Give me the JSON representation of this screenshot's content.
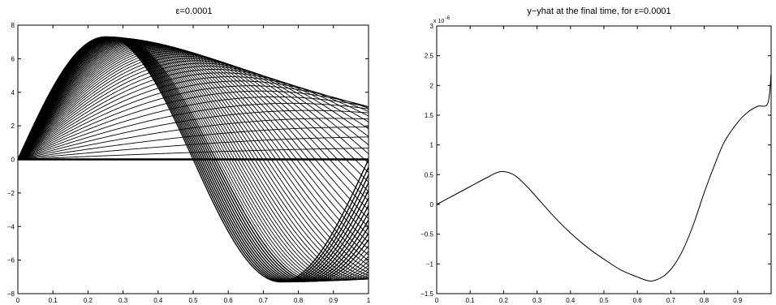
{
  "chart_data": [
    {
      "type": "line",
      "title": "ε=0.0001",
      "xlabel": "",
      "ylabel": "",
      "xlim": [
        0,
        1
      ],
      "ylim": [
        -8,
        8
      ],
      "xticks": [
        0,
        0.1,
        0.2,
        0.3,
        0.4,
        0.5,
        0.6,
        0.7,
        0.8,
        0.9,
        1
      ],
      "xtick_labels": [
        "0",
        "0.1",
        "0.2",
        "0.3",
        "0.4",
        "0.5",
        "0.6",
        "0.7",
        "0.8",
        "0.9",
        "1"
      ],
      "yticks": [
        -8,
        -6,
        -4,
        -2,
        0,
        2,
        4,
        6,
        8
      ],
      "ytick_labels": [
        "−8",
        "−6",
        "−4",
        "−2",
        "0",
        "2",
        "4",
        "6",
        "8"
      ],
      "grid": false,
      "legend": "none",
      "line_color": "#000000",
      "series_description": "family of curves y(x,t) = A(t) sin(2πx·s(t)), converging to amplitude ~7.3",
      "final_peak": [
        0.25,
        7.3
      ],
      "final_trough": [
        0.75,
        -7.3
      ],
      "curve_count": 60
    },
    {
      "type": "line",
      "title": "y−yhat at the final time, for ε=0.0001",
      "xlabel": "",
      "ylabel": "",
      "exponent_label": "x 10",
      "exponent_power": "−6",
      "xlim": [
        0,
        1
      ],
      "ylim": [
        -1.5,
        3
      ],
      "xticks": [
        0,
        0.1,
        0.2,
        0.3,
        0.4,
        0.5,
        0.6,
        0.7,
        0.8,
        0.9
      ],
      "xtick_labels": [
        "0",
        "0.1",
        "0.2",
        "0.3",
        "0.4",
        "0.5",
        "0.6",
        "0.7",
        "0.8",
        "0.9"
      ],
      "yticks": [
        -1.5,
        -1,
        -0.5,
        0,
        0.5,
        1,
        1.5,
        2,
        2.5,
        3
      ],
      "ytick_labels": [
        "−1.5",
        "−1",
        "−0.5",
        "0",
        "0.5",
        "1",
        "1.5",
        "2",
        "2.5",
        "3"
      ],
      "grid": false,
      "legend": "none",
      "line_color": "#000000",
      "x": [
        0,
        0.05,
        0.1,
        0.15,
        0.19,
        0.23,
        0.27,
        0.31,
        0.35,
        0.4,
        0.45,
        0.5,
        0.55,
        0.6,
        0.63,
        0.65,
        0.68,
        0.71,
        0.74,
        0.77,
        0.8,
        0.83,
        0.86,
        0.9,
        0.93,
        0.96,
        0.99,
        1.0
      ],
      "y": [
        0,
        0.15,
        0.3,
        0.45,
        0.55,
        0.5,
        0.3,
        0.05,
        -0.2,
        -0.48,
        -0.72,
        -0.92,
        -1.1,
        -1.22,
        -1.28,
        -1.28,
        -1.2,
        -1.02,
        -0.72,
        -0.3,
        0.2,
        0.65,
        1.05,
        1.38,
        1.55,
        1.65,
        1.7,
        2.2
      ]
    }
  ]
}
